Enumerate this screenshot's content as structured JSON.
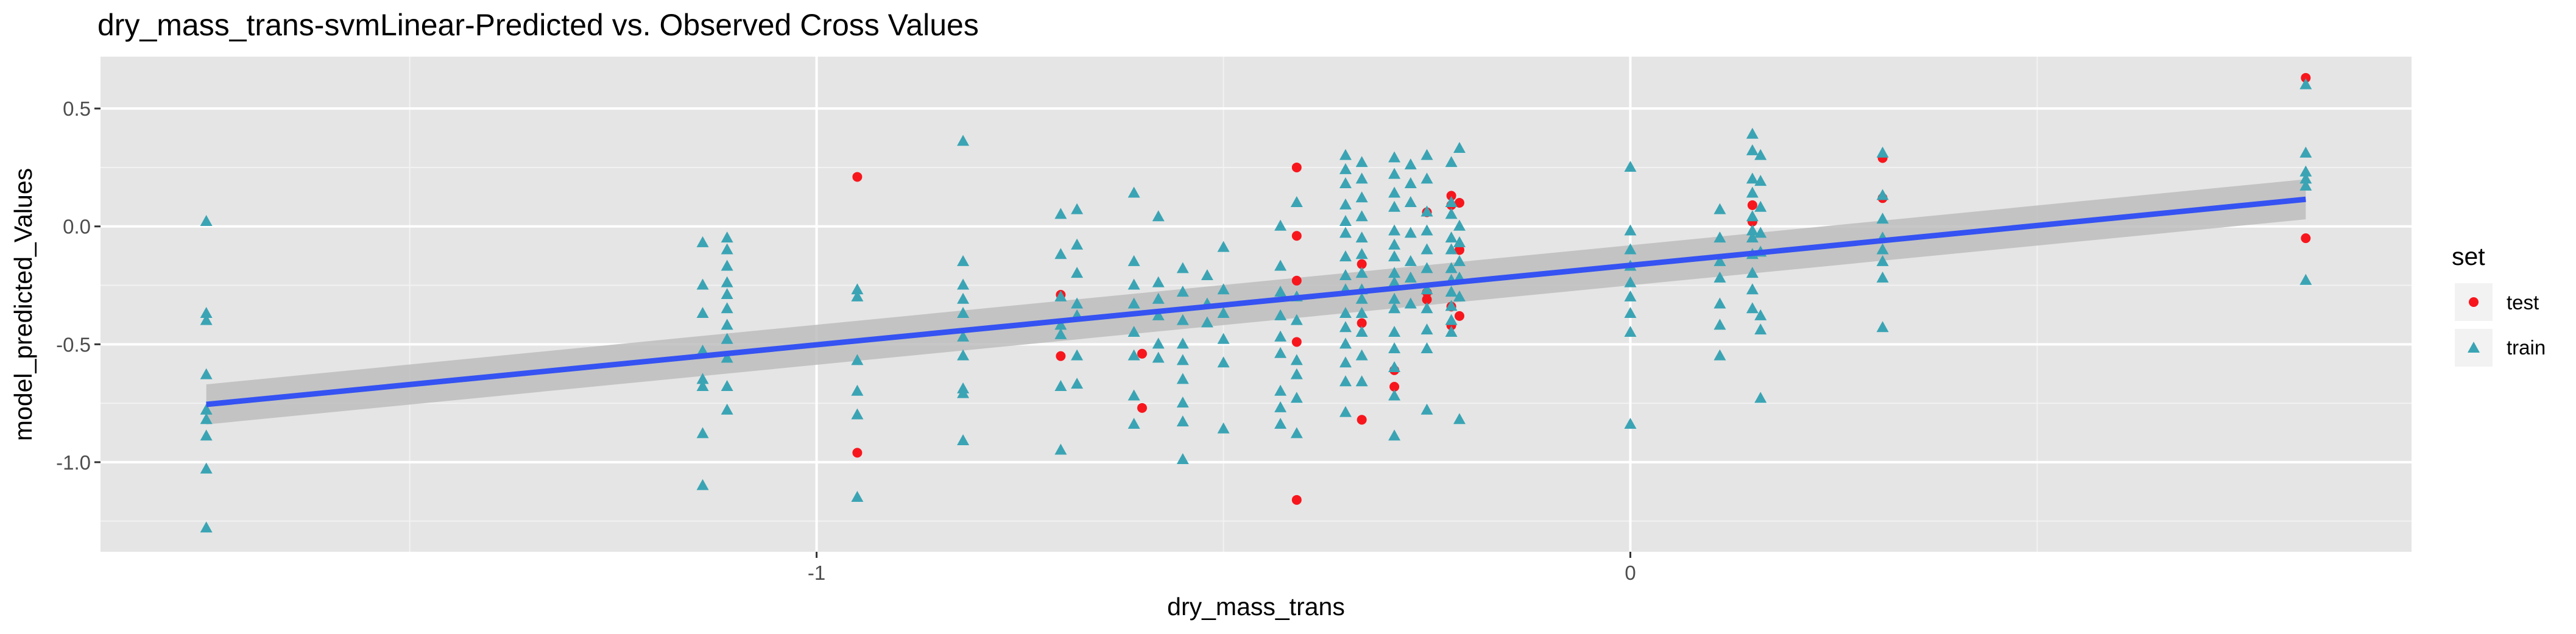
{
  "chart_data": {
    "type": "scatter",
    "title": "dry_mass_trans-svmLinear-Predicted vs. Observed Cross Values",
    "xlabel": "dry_mass_trans",
    "ylabel": "model_predicted_Values",
    "xlim": [
      -1.88,
      0.96
    ],
    "ylim": [
      -1.38,
      0.72
    ],
    "x_ticks": [
      -1,
      0
    ],
    "x_tick_labels": [
      "-1",
      "0"
    ],
    "y_ticks": [
      0.5,
      0.0,
      -0.5,
      -1.0
    ],
    "y_tick_labels": [
      "0.5",
      "0.0",
      "-0.5",
      "-1.0"
    ],
    "grid": true,
    "legend": {
      "title": "set",
      "position": "right",
      "entries": [
        {
          "label": "test",
          "color": "#f8161d",
          "shape": "circle"
        },
        {
          "label": "train",
          "color": "#3aa4b4",
          "shape": "triangle"
        }
      ]
    },
    "series": [
      {
        "name": "test",
        "color": "#f8161d",
        "shape": "circle",
        "points": [
          [
            -0.95,
            0.21
          ],
          [
            -0.95,
            -0.96
          ],
          [
            -0.7,
            -0.29
          ],
          [
            -0.7,
            -0.55
          ],
          [
            -0.6,
            -0.54
          ],
          [
            -0.6,
            -0.77
          ],
          [
            -0.41,
            0.25
          ],
          [
            -0.41,
            -0.04
          ],
          [
            -0.41,
            -0.23
          ],
          [
            -0.41,
            -0.49
          ],
          [
            -0.41,
            -1.16
          ],
          [
            -0.33,
            -0.16
          ],
          [
            -0.33,
            -0.41
          ],
          [
            -0.33,
            -0.82
          ],
          [
            -0.29,
            -0.61
          ],
          [
            -0.29,
            -0.68
          ],
          [
            -0.25,
            0.06
          ],
          [
            -0.25,
            -0.28
          ],
          [
            -0.25,
            -0.31
          ],
          [
            -0.22,
            0.13
          ],
          [
            -0.22,
            0.09
          ],
          [
            -0.22,
            -0.34
          ],
          [
            -0.22,
            -0.42
          ],
          [
            -0.21,
            0.1
          ],
          [
            -0.21,
            -0.1
          ],
          [
            -0.21,
            -0.38
          ],
          [
            0.15,
            0.09
          ],
          [
            0.15,
            0.02
          ],
          [
            0.31,
            0.29
          ],
          [
            0.31,
            0.12
          ],
          [
            0.83,
            0.63
          ],
          [
            0.83,
            -0.05
          ]
        ]
      },
      {
        "name": "train",
        "color": "#3aa4b4",
        "shape": "triangle",
        "points": [
          [
            -1.75,
            0.02
          ],
          [
            -1.75,
            -0.37
          ],
          [
            -1.75,
            -0.4
          ],
          [
            -1.75,
            -0.63
          ],
          [
            -1.75,
            -0.78
          ],
          [
            -1.75,
            -0.82
          ],
          [
            -1.75,
            -0.89
          ],
          [
            -1.75,
            -1.03
          ],
          [
            -1.75,
            -1.28
          ],
          [
            -1.14,
            -0.07
          ],
          [
            -1.14,
            -0.25
          ],
          [
            -1.14,
            -0.37
          ],
          [
            -1.14,
            -0.53
          ],
          [
            -1.14,
            -0.65
          ],
          [
            -1.14,
            -0.68
          ],
          [
            -1.14,
            -0.88
          ],
          [
            -1.14,
            -1.1
          ],
          [
            -1.11,
            -0.05
          ],
          [
            -1.11,
            -0.1
          ],
          [
            -1.11,
            -0.17
          ],
          [
            -1.11,
            -0.24
          ],
          [
            -1.11,
            -0.29
          ],
          [
            -1.11,
            -0.35
          ],
          [
            -1.11,
            -0.42
          ],
          [
            -1.11,
            -0.48
          ],
          [
            -1.11,
            -0.56
          ],
          [
            -1.11,
            -0.68
          ],
          [
            -1.11,
            -0.78
          ],
          [
            -0.95,
            -0.27
          ],
          [
            -0.95,
            -0.3
          ],
          [
            -0.95,
            -0.57
          ],
          [
            -0.95,
            -0.7
          ],
          [
            -0.95,
            -0.8
          ],
          [
            -0.95,
            -1.15
          ],
          [
            -0.82,
            0.36
          ],
          [
            -0.82,
            -0.15
          ],
          [
            -0.82,
            -0.25
          ],
          [
            -0.82,
            -0.31
          ],
          [
            -0.82,
            -0.37
          ],
          [
            -0.82,
            -0.47
          ],
          [
            -0.82,
            -0.55
          ],
          [
            -0.82,
            -0.69
          ],
          [
            -0.82,
            -0.71
          ],
          [
            -0.82,
            -0.91
          ],
          [
            -0.7,
            0.05
          ],
          [
            -0.7,
            -0.12
          ],
          [
            -0.7,
            -0.3
          ],
          [
            -0.7,
            -0.42
          ],
          [
            -0.7,
            -0.46
          ],
          [
            -0.7,
            -0.68
          ],
          [
            -0.7,
            -0.95
          ],
          [
            -0.68,
            0.07
          ],
          [
            -0.68,
            -0.08
          ],
          [
            -0.68,
            -0.2
          ],
          [
            -0.68,
            -0.33
          ],
          [
            -0.68,
            -0.38
          ],
          [
            -0.68,
            -0.55
          ],
          [
            -0.68,
            -0.67
          ],
          [
            -0.61,
            0.14
          ],
          [
            -0.61,
            -0.15
          ],
          [
            -0.61,
            -0.25
          ],
          [
            -0.61,
            -0.33
          ],
          [
            -0.61,
            -0.45
          ],
          [
            -0.61,
            -0.55
          ],
          [
            -0.61,
            -0.72
          ],
          [
            -0.61,
            -0.84
          ],
          [
            -0.58,
            0.04
          ],
          [
            -0.58,
            -0.24
          ],
          [
            -0.58,
            -0.31
          ],
          [
            -0.58,
            -0.38
          ],
          [
            -0.58,
            -0.5
          ],
          [
            -0.58,
            -0.56
          ],
          [
            -0.55,
            -0.18
          ],
          [
            -0.55,
            -0.28
          ],
          [
            -0.55,
            -0.4
          ],
          [
            -0.55,
            -0.5
          ],
          [
            -0.55,
            -0.57
          ],
          [
            -0.55,
            -0.65
          ],
          [
            -0.55,
            -0.75
          ],
          [
            -0.55,
            -0.83
          ],
          [
            -0.55,
            -0.99
          ],
          [
            -0.52,
            -0.21
          ],
          [
            -0.52,
            -0.33
          ],
          [
            -0.52,
            -0.41
          ],
          [
            -0.5,
            -0.09
          ],
          [
            -0.5,
            -0.27
          ],
          [
            -0.5,
            -0.37
          ],
          [
            -0.5,
            -0.48
          ],
          [
            -0.5,
            -0.58
          ],
          [
            -0.5,
            -0.86
          ],
          [
            -0.43,
            0.0
          ],
          [
            -0.43,
            -0.17
          ],
          [
            -0.43,
            -0.28
          ],
          [
            -0.43,
            -0.38
          ],
          [
            -0.43,
            -0.47
          ],
          [
            -0.43,
            -0.54
          ],
          [
            -0.43,
            -0.7
          ],
          [
            -0.43,
            -0.77
          ],
          [
            -0.43,
            -0.84
          ],
          [
            -0.41,
            0.1
          ],
          [
            -0.41,
            -0.3
          ],
          [
            -0.41,
            -0.4
          ],
          [
            -0.41,
            -0.57
          ],
          [
            -0.41,
            -0.63
          ],
          [
            -0.41,
            -0.73
          ],
          [
            -0.41,
            -0.88
          ],
          [
            -0.35,
            0.3
          ],
          [
            -0.35,
            0.24
          ],
          [
            -0.35,
            0.18
          ],
          [
            -0.35,
            0.09
          ],
          [
            -0.35,
            0.02
          ],
          [
            -0.35,
            -0.03
          ],
          [
            -0.35,
            -0.13
          ],
          [
            -0.35,
            -0.21
          ],
          [
            -0.35,
            -0.27
          ],
          [
            -0.35,
            -0.37
          ],
          [
            -0.35,
            -0.43
          ],
          [
            -0.35,
            -0.5
          ],
          [
            -0.35,
            -0.58
          ],
          [
            -0.35,
            -0.66
          ],
          [
            -0.35,
            -0.79
          ],
          [
            -0.33,
            0.27
          ],
          [
            -0.33,
            0.2
          ],
          [
            -0.33,
            0.12
          ],
          [
            -0.33,
            0.04
          ],
          [
            -0.33,
            -0.05
          ],
          [
            -0.33,
            -0.12
          ],
          [
            -0.33,
            -0.2
          ],
          [
            -0.33,
            -0.27
          ],
          [
            -0.33,
            -0.31
          ],
          [
            -0.33,
            -0.37
          ],
          [
            -0.33,
            -0.45
          ],
          [
            -0.33,
            -0.55
          ],
          [
            -0.33,
            -0.66
          ],
          [
            -0.29,
            0.29
          ],
          [
            -0.29,
            0.22
          ],
          [
            -0.29,
            0.14
          ],
          [
            -0.29,
            0.08
          ],
          [
            -0.29,
            -0.02
          ],
          [
            -0.29,
            -0.08
          ],
          [
            -0.29,
            -0.13
          ],
          [
            -0.29,
            -0.2
          ],
          [
            -0.29,
            -0.24
          ],
          [
            -0.29,
            -0.31
          ],
          [
            -0.29,
            -0.35
          ],
          [
            -0.29,
            -0.45
          ],
          [
            -0.29,
            -0.52
          ],
          [
            -0.29,
            -0.6
          ],
          [
            -0.29,
            -0.72
          ],
          [
            -0.29,
            -0.89
          ],
          [
            -0.27,
            0.26
          ],
          [
            -0.27,
            0.18
          ],
          [
            -0.27,
            0.1
          ],
          [
            -0.27,
            -0.03
          ],
          [
            -0.27,
            -0.15
          ],
          [
            -0.27,
            -0.22
          ],
          [
            -0.27,
            -0.33
          ],
          [
            -0.25,
            0.3
          ],
          [
            -0.25,
            0.2
          ],
          [
            -0.25,
            0.06
          ],
          [
            -0.25,
            -0.02
          ],
          [
            -0.25,
            -0.1
          ],
          [
            -0.25,
            -0.18
          ],
          [
            -0.25,
            -0.27
          ],
          [
            -0.25,
            -0.35
          ],
          [
            -0.25,
            -0.44
          ],
          [
            -0.25,
            -0.52
          ],
          [
            -0.25,
            -0.78
          ],
          [
            -0.22,
            0.27
          ],
          [
            -0.22,
            0.1
          ],
          [
            -0.22,
            0.05
          ],
          [
            -0.22,
            -0.05
          ],
          [
            -0.22,
            -0.1
          ],
          [
            -0.22,
            -0.18
          ],
          [
            -0.22,
            -0.23
          ],
          [
            -0.22,
            -0.28
          ],
          [
            -0.22,
            -0.34
          ],
          [
            -0.22,
            -0.4
          ],
          [
            -0.22,
            -0.45
          ],
          [
            -0.21,
            0.33
          ],
          [
            -0.21,
            0.0
          ],
          [
            -0.21,
            -0.07
          ],
          [
            -0.21,
            -0.15
          ],
          [
            -0.21,
            -0.22
          ],
          [
            -0.21,
            -0.3
          ],
          [
            -0.21,
            -0.82
          ],
          [
            0.0,
            0.25
          ],
          [
            0.0,
            -0.02
          ],
          [
            0.0,
            -0.1
          ],
          [
            0.0,
            -0.17
          ],
          [
            0.0,
            -0.24
          ],
          [
            0.0,
            -0.3
          ],
          [
            0.0,
            -0.37
          ],
          [
            0.0,
            -0.45
          ],
          [
            0.0,
            -0.84
          ],
          [
            0.11,
            0.07
          ],
          [
            0.11,
            -0.05
          ],
          [
            0.11,
            -0.15
          ],
          [
            0.11,
            -0.22
          ],
          [
            0.11,
            -0.33
          ],
          [
            0.11,
            -0.42
          ],
          [
            0.11,
            -0.55
          ],
          [
            0.15,
            0.39
          ],
          [
            0.15,
            0.32
          ],
          [
            0.15,
            0.2
          ],
          [
            0.15,
            0.14
          ],
          [
            0.15,
            0.04
          ],
          [
            0.15,
            -0.02
          ],
          [
            0.15,
            -0.05
          ],
          [
            0.15,
            -0.12
          ],
          [
            0.15,
            -0.2
          ],
          [
            0.15,
            -0.27
          ],
          [
            0.15,
            -0.35
          ],
          [
            0.16,
            0.3
          ],
          [
            0.16,
            0.19
          ],
          [
            0.16,
            0.08
          ],
          [
            0.16,
            -0.03
          ],
          [
            0.16,
            -0.11
          ],
          [
            0.16,
            -0.38
          ],
          [
            0.16,
            -0.44
          ],
          [
            0.16,
            -0.73
          ],
          [
            0.31,
            0.31
          ],
          [
            0.31,
            0.13
          ],
          [
            0.31,
            0.03
          ],
          [
            0.31,
            -0.05
          ],
          [
            0.31,
            -0.1
          ],
          [
            0.31,
            -0.15
          ],
          [
            0.31,
            -0.22
          ],
          [
            0.31,
            -0.43
          ],
          [
            0.83,
            0.6
          ],
          [
            0.83,
            0.31
          ],
          [
            0.83,
            0.23
          ],
          [
            0.83,
            0.2
          ],
          [
            0.83,
            0.17
          ],
          [
            0.83,
            -0.23
          ]
        ]
      }
    ],
    "trend_line": {
      "label": "linear fit",
      "color": "#3552f2",
      "band_color": "#bdbdbd",
      "x": [
        -1.75,
        0.83
      ],
      "y": [
        -0.755,
        0.115
      ],
      "band_half_width_at_x": [
        0.085,
        0.085
      ]
    }
  }
}
